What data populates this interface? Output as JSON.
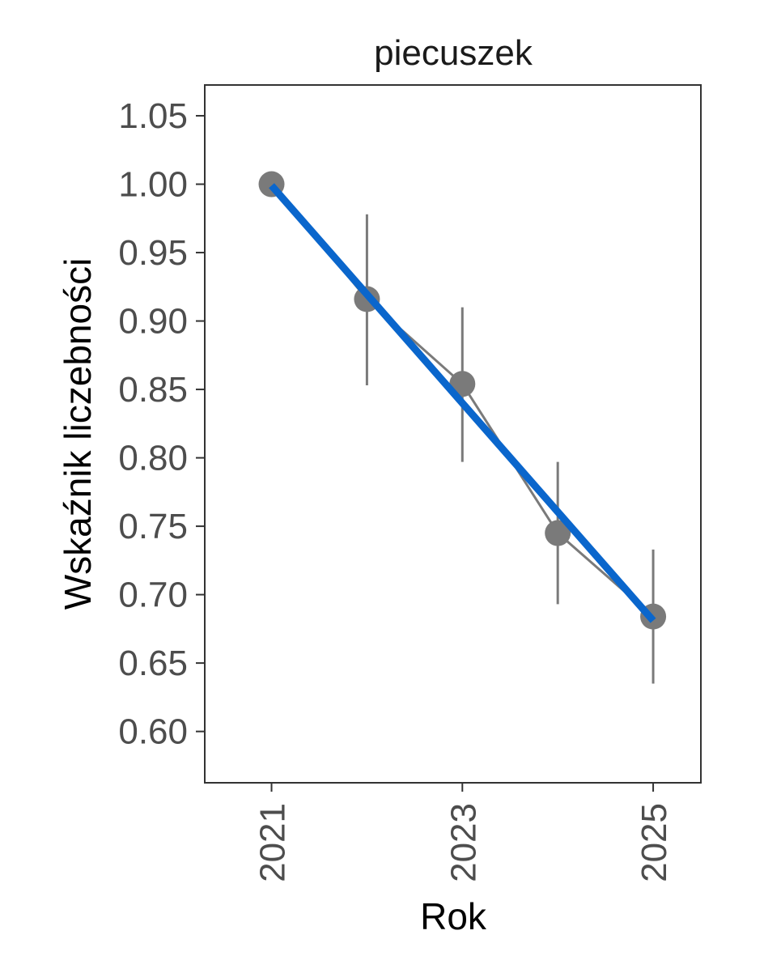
{
  "chart_data": {
    "type": "line",
    "title": "piecuszek",
    "xlabel": "Rok",
    "ylabel": "Wskaźnik liczebności",
    "x_ticks": [
      "2021",
      "2023",
      "2025"
    ],
    "y_ticks": [
      "0.60",
      "0.65",
      "0.70",
      "0.75",
      "0.80",
      "0.85",
      "0.90",
      "0.95",
      "1.00",
      "1.05"
    ],
    "xlim": [
      2020.3,
      2025.5
    ],
    "ylim": [
      0.5625,
      1.0725
    ],
    "grid": false,
    "series": [
      {
        "x": [
          2021,
          2022,
          2023,
          2024,
          2025
        ],
        "y": [
          1.0,
          0.916,
          0.854,
          0.745,
          0.684
        ],
        "lower": [
          1.0,
          0.853,
          0.797,
          0.693,
          0.635
        ],
        "upper": [
          1.0,
          0.978,
          0.91,
          0.797,
          0.733
        ],
        "color": "#7a7a7a"
      }
    ],
    "trend": {
      "x": [
        2021,
        2025
      ],
      "y": [
        0.999,
        0.681
      ],
      "color": "#0a66cc"
    }
  }
}
